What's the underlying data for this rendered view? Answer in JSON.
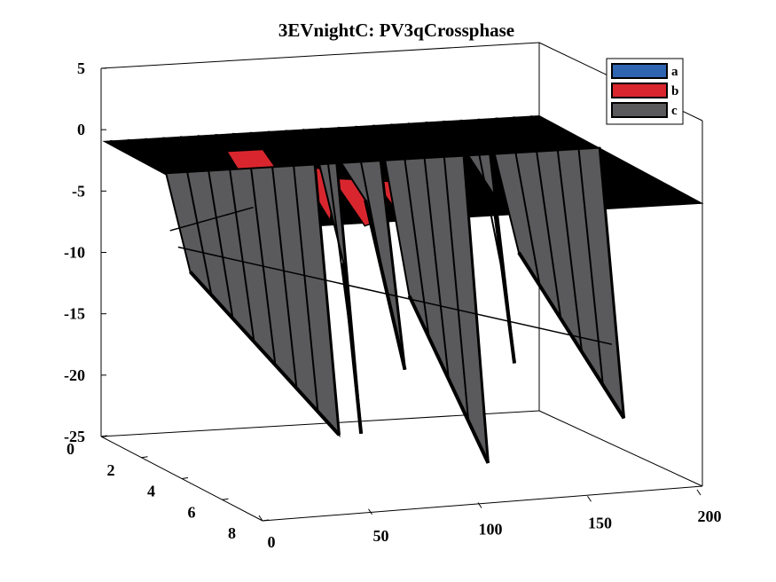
{
  "chart_data": {
    "type": "surface3d",
    "title": "3EVnightC: PV3qCrossphase",
    "z_ticks": [
      "5",
      "0",
      "-5",
      "-10",
      "-15",
      "-20",
      "-25"
    ],
    "y_ticks": [
      "0",
      "2",
      "4",
      "6",
      "8"
    ],
    "x_ticks": [
      "0",
      "50",
      "100",
      "150",
      "200"
    ],
    "zlim": [
      -25,
      5
    ],
    "ylim": [
      0,
      8
    ],
    "xlim": [
      0,
      200
    ],
    "grid": false,
    "legend_position": "top-right",
    "series": [
      {
        "name": "a",
        "color": "#2f64b0"
      },
      {
        "name": "b",
        "color": "#d9262e"
      },
      {
        "name": "c",
        "color": "#5a5a5c"
      }
    ],
    "surface_top_z": -1,
    "edge_color": "#000000",
    "dip_panels": [
      {
        "x_start": 0,
        "x_end": 70,
        "z_bottom": -22
      },
      {
        "x_start": 70,
        "x_end": 80,
        "z_bottom": -22
      },
      {
        "x_start": 80,
        "x_end": 100,
        "z_bottom": -17
      },
      {
        "x_start": 100,
        "x_end": 138,
        "z_bottom": -25
      },
      {
        "x_start": 138,
        "x_end": 150,
        "z_bottom": -17
      },
      {
        "x_start": 150,
        "x_end": 200,
        "z_bottom": -22
      }
    ]
  }
}
